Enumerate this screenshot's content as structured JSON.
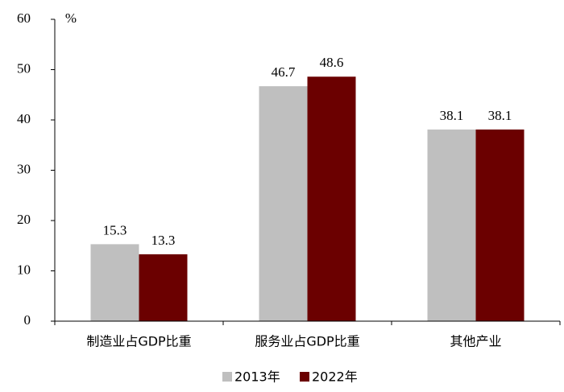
{
  "chart_data": {
    "type": "bar",
    "y_label": "%",
    "categories": [
      "制造业占GDP比重",
      "服务业占GDP比重",
      "其他产业"
    ],
    "series": [
      {
        "name": "2013年",
        "color": "#bfbfbf",
        "values": [
          15.3,
          46.7,
          38.1
        ]
      },
      {
        "name": "2022年",
        "color": "#6b0000",
        "values": [
          13.3,
          48.6,
          38.1
        ]
      }
    ],
    "ylim": [
      0,
      60
    ],
    "yticks": [
      0,
      10,
      20,
      30,
      40,
      50,
      60
    ],
    "grid": false,
    "legend": "bottom"
  }
}
